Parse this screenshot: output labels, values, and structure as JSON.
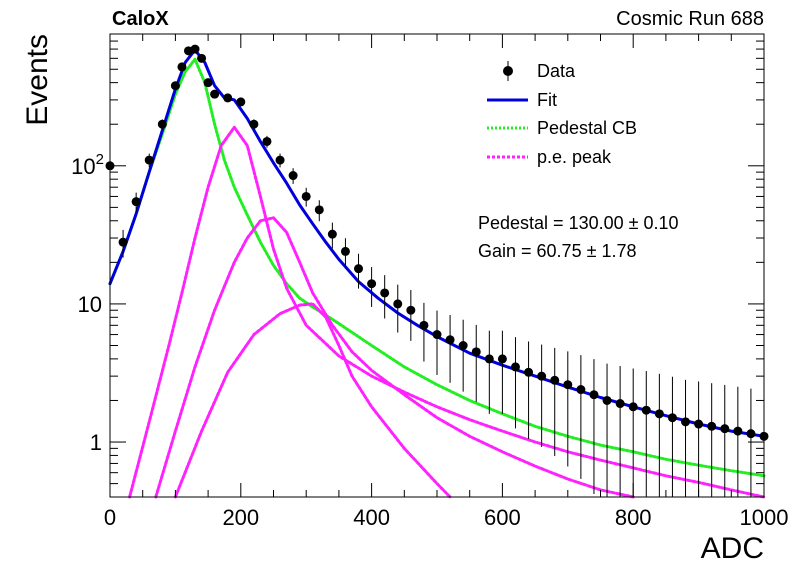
{
  "header": {
    "left_label": "CaloX",
    "right_label": "Cosmic Run 688"
  },
  "fit_results": {
    "pedestal_line": "Pedestal = 130.00 ± 0.10",
    "gain_line": "Gain = 60.75 ± 1.78"
  },
  "colors": {
    "data": "#000000",
    "fit": "#0000dd",
    "pedestal": "#22ee22",
    "pe_peak": "#ff22ff"
  },
  "chart_data": {
    "type": "scatter",
    "title": "",
    "xlabel": "ADC",
    "ylabel": "Events",
    "xlim": [
      0,
      1000
    ],
    "ylim": [
      0.4,
      900
    ],
    "yscale": "log",
    "grid": false,
    "legend_position": "top-right",
    "x_ticks": [
      "0",
      "200",
      "400",
      "600",
      "800",
      "1000"
    ],
    "y_ticks": [
      {
        "value": 1,
        "label": "1"
      },
      {
        "value": 10,
        "label": "10"
      },
      {
        "value": 100,
        "label": "10",
        "exp": "2"
      }
    ],
    "legend": [
      {
        "name": "Data",
        "style": "marker"
      },
      {
        "name": "Fit",
        "style": "line"
      },
      {
        "name": "Pedestal CB",
        "style": "dotted-green"
      },
      {
        "name": "p.e. peak",
        "style": "dotted-magenta"
      }
    ],
    "data_points": {
      "x": [
        0,
        20,
        40,
        60,
        80,
        100,
        110,
        120,
        130,
        140,
        150,
        160,
        180,
        200,
        220,
        240,
        260,
        280,
        300,
        320,
        340,
        360,
        380,
        400,
        420,
        440,
        460,
        480,
        500,
        520,
        540,
        560,
        580,
        600,
        620,
        640,
        660,
        680,
        700,
        720,
        740,
        760,
        780,
        800,
        820,
        840,
        860,
        880,
        900,
        920,
        940,
        960,
        980,
        1000
      ],
      "y": [
        100,
        28,
        55,
        110,
        200,
        380,
        520,
        680,
        700,
        600,
        400,
        330,
        310,
        290,
        200,
        150,
        110,
        85,
        60,
        48,
        32,
        24,
        18,
        14,
        12,
        10,
        9,
        7,
        6,
        5.5,
        5,
        4.5,
        4,
        4,
        3.5,
        3.2,
        3,
        2.8,
        2.6,
        2.4,
        2.2,
        2.0,
        1.9,
        1.8,
        1.7,
        1.6,
        1.5,
        1.4,
        1.35,
        1.3,
        1.25,
        1.2,
        1.15,
        1.1
      ]
    },
    "series": [
      {
        "name": "Fit",
        "x": [
          0,
          20,
          40,
          60,
          80,
          100,
          115,
          130,
          145,
          160,
          175,
          190,
          210,
          230,
          250,
          270,
          290,
          310,
          330,
          350,
          380,
          410,
          440,
          470,
          500,
          550,
          600,
          650,
          700,
          750,
          800,
          850,
          900,
          950,
          1000
        ],
        "y": [
          14,
          24,
          45,
          90,
          180,
          360,
          560,
          690,
          560,
          380,
          310,
          300,
          220,
          150,
          105,
          75,
          52,
          38,
          28,
          21,
          14.5,
          11,
          8.6,
          7.0,
          5.8,
          4.4,
          3.6,
          3.0,
          2.5,
          2.1,
          1.8,
          1.55,
          1.35,
          1.2,
          1.1
        ]
      },
      {
        "name": "Pedestal CB",
        "x": [
          0,
          20,
          40,
          60,
          80,
          100,
          115,
          130,
          145,
          160,
          175,
          190,
          210,
          230,
          250,
          270,
          290,
          310,
          330,
          350,
          400,
          450,
          500,
          550,
          600,
          650,
          700,
          750,
          800,
          850,
          900,
          950,
          1000
        ],
        "y": [
          14,
          24,
          45,
          90,
          170,
          330,
          480,
          590,
          400,
          200,
          110,
          70,
          44,
          28,
          19,
          14,
          11,
          9.5,
          8.3,
          7.2,
          5.0,
          3.5,
          2.6,
          2.0,
          1.6,
          1.3,
          1.1,
          0.95,
          0.85,
          0.75,
          0.68,
          0.62,
          0.57
        ]
      },
      {
        "name": "p.e. peak",
        "x": [
          30,
          60,
          90,
          110,
          130,
          150,
          170,
          190,
          210,
          230,
          250,
          270,
          300,
          350,
          400,
          450,
          500,
          550,
          600,
          650,
          700,
          750,
          800,
          850,
          900,
          950,
          1000
        ],
        "y": [
          0.4,
          1.4,
          5,
          12,
          30,
          70,
          140,
          190,
          140,
          60,
          25,
          13,
          7.0,
          4.2,
          3.0,
          2.3,
          1.8,
          1.45,
          1.2,
          1.0,
          0.85,
          0.74,
          0.65,
          0.57,
          0.51,
          0.45,
          0.4
        ]
      },
      {
        "name": "p.e. peak",
        "x": [
          70,
          100,
          130,
          160,
          190,
          210,
          230,
          250,
          270,
          290,
          310,
          340,
          370,
          400,
          450,
          500,
          550,
          600,
          650,
          700,
          750,
          800
        ],
        "y": [
          0.4,
          1.2,
          3.5,
          9,
          20,
          30,
          40,
          42,
          33,
          20,
          12,
          7,
          4.5,
          3.3,
          2.2,
          1.5,
          1.1,
          0.85,
          0.67,
          0.54,
          0.45,
          0.4
        ]
      },
      {
        "name": "p.e. peak",
        "x": [
          100,
          140,
          180,
          220,
          260,
          290,
          310,
          330,
          350,
          370,
          400,
          450,
          500,
          520
        ],
        "y": [
          0.4,
          1.2,
          3.2,
          6,
          8.5,
          9.8,
          10,
          8,
          5,
          3,
          1.8,
          0.9,
          0.5,
          0.4
        ]
      }
    ]
  }
}
